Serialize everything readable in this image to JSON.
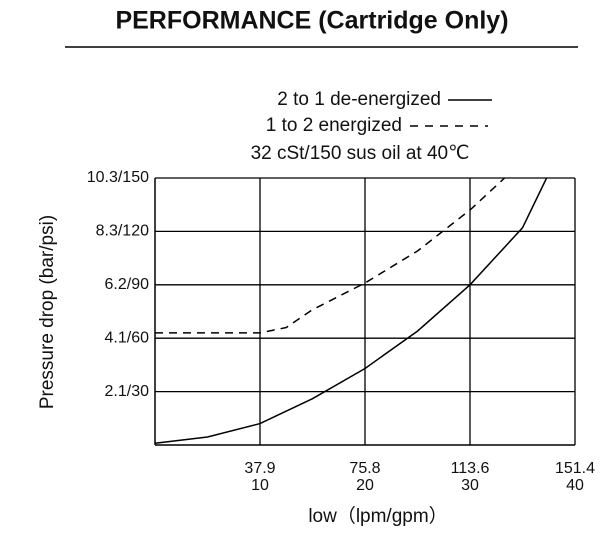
{
  "chart_data": {
    "type": "line",
    "title": "PERFORMANCE (Cartridge Only)",
    "legend_text": [
      "2 to 1 de-energized",
      "1 to 2 energized",
      "32 cSt/150 sus oil at 40℃"
    ],
    "ylabel": "Pressure drop (bar/psi)",
    "xlabel": "low（lpm/gpm）",
    "xlim": [
      0,
      40
    ],
    "ylim": [
      0,
      150
    ],
    "xticks": [
      10,
      20,
      30,
      40
    ],
    "xticks_lpm": [
      37.9,
      75.8,
      113.6,
      151.4
    ],
    "yticks": [
      {
        "value": 30,
        "label": "2.1/30"
      },
      {
        "value": 60,
        "label": "4.1/60"
      },
      {
        "value": 90,
        "label": "6.2/90"
      },
      {
        "value": 120,
        "label": "8.3/120"
      },
      {
        "value": 150,
        "label": "10.3/150"
      }
    ],
    "grid": true,
    "series": [
      {
        "name": "2 to 1 de-energized",
        "color": "#000000",
        "dash": false,
        "x": [
          0,
          5,
          10,
          15,
          20,
          25,
          30,
          35,
          37.3
        ],
        "values": [
          1,
          4.5,
          12,
          26,
          43,
          64,
          90,
          122,
          150
        ]
      },
      {
        "name": "1 to 2 energized",
        "color": "#000000",
        "dash": true,
        "x": [
          0,
          10,
          12.5,
          15,
          20,
          25,
          30,
          33.3
        ],
        "values": [
          63,
          63,
          66,
          76,
          91,
          109,
          132,
          150
        ]
      }
    ]
  }
}
